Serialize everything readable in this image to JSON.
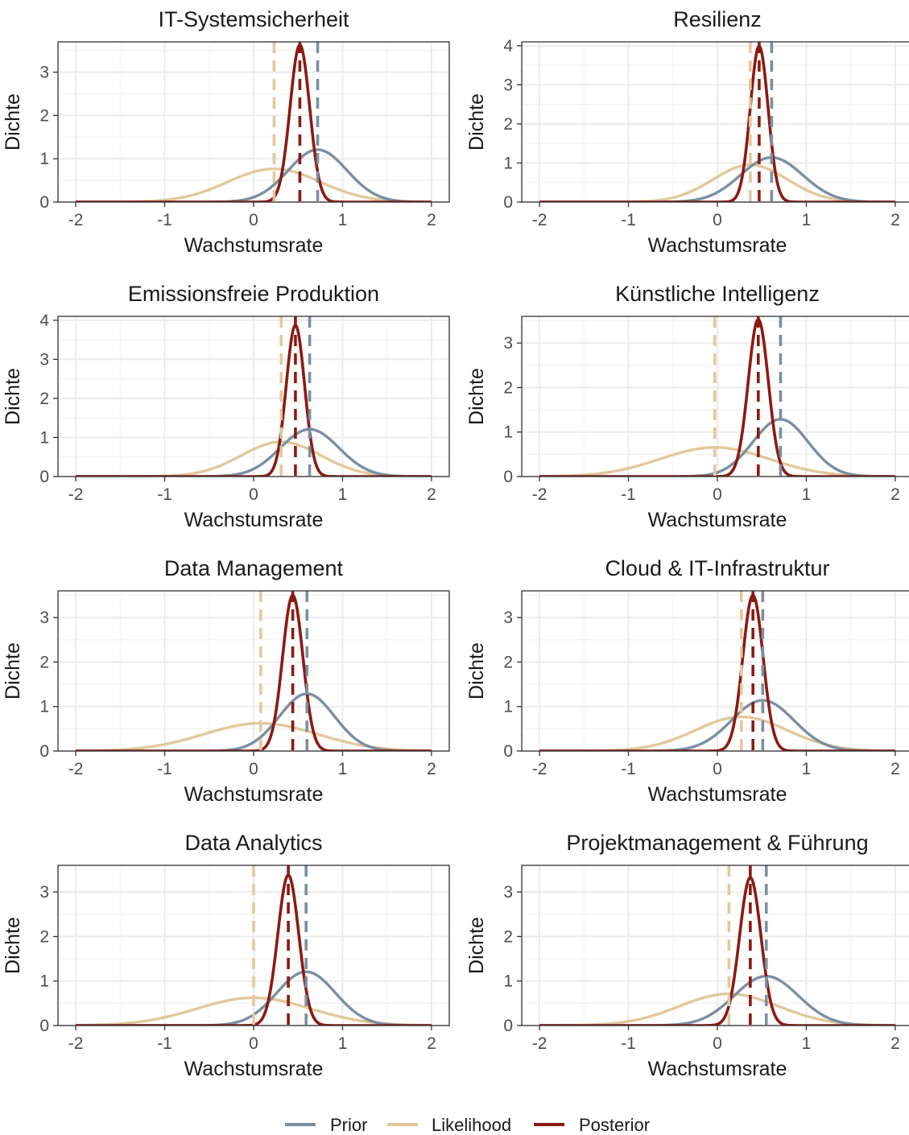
{
  "chart_data": {
    "type": "line",
    "layout": "4x2 facet grid",
    "legend": {
      "position": "bottom",
      "items": [
        {
          "name": "Prior",
          "color": "#7a8fa3"
        },
        {
          "name": "Likelihood",
          "color": "#e2c89b"
        },
        {
          "name": "Posterior",
          "color": "#8b1a12"
        }
      ]
    },
    "colors": {
      "prior": "#7a8fa3",
      "likelihood": "#e2c89b",
      "posterior": "#8b1a12",
      "grid": "#ebebeb",
      "panel_border": "#333333"
    },
    "grid": true,
    "xlabel": "Wachstumsrate",
    "ylabel": "Dichte",
    "xlim": [
      -2,
      2
    ],
    "xticks": [
      -2,
      -1,
      0,
      1,
      2
    ],
    "line_style": "normal density curves with dashed vertical lines at each curve's mean",
    "panels": [
      {
        "title": "IT-Systemsicherheit",
        "ylim": [
          0,
          3.7
        ],
        "yticks": [
          0,
          1,
          2,
          3
        ],
        "prior": {
          "mean": 0.72,
          "sd": 0.33
        },
        "likelihood": {
          "mean": 0.23,
          "sd": 0.52
        },
        "posterior": {
          "mean": 0.52,
          "sd": 0.11
        }
      },
      {
        "title": "Resilienz",
        "ylim": [
          0,
          4.1
        ],
        "yticks": [
          0,
          1,
          2,
          3,
          4
        ],
        "prior": {
          "mean": 0.61,
          "sd": 0.35
        },
        "likelihood": {
          "mean": 0.37,
          "sd": 0.42
        },
        "posterior": {
          "mean": 0.47,
          "sd": 0.1
        }
      },
      {
        "title": "Emissionsfreie Produktion",
        "ylim": [
          0,
          4.1
        ],
        "yticks": [
          0,
          1,
          2,
          3,
          4
        ],
        "prior": {
          "mean": 0.63,
          "sd": 0.33
        },
        "likelihood": {
          "mean": 0.31,
          "sd": 0.45
        },
        "posterior": {
          "mean": 0.47,
          "sd": 0.103
        }
      },
      {
        "title": "Künstliche Intelligenz",
        "ylim": [
          0,
          3.6
        ],
        "yticks": [
          0,
          1,
          2,
          3
        ],
        "prior": {
          "mean": 0.71,
          "sd": 0.31
        },
        "likelihood": {
          "mean": -0.03,
          "sd": 0.61
        },
        "posterior": {
          "mean": 0.46,
          "sd": 0.113
        }
      },
      {
        "title": "Data Management",
        "ylim": [
          0,
          3.6
        ],
        "yticks": [
          0,
          1,
          2,
          3
        ],
        "prior": {
          "mean": 0.6,
          "sd": 0.31
        },
        "likelihood": {
          "mean": 0.08,
          "sd": 0.64
        },
        "posterior": {
          "mean": 0.44,
          "sd": 0.114
        }
      },
      {
        "title": "Cloud & IT-Infrastruktur",
        "ylim": [
          0,
          3.6
        ],
        "yticks": [
          0,
          1,
          2,
          3
        ],
        "prior": {
          "mean": 0.51,
          "sd": 0.35
        },
        "likelihood": {
          "mean": 0.27,
          "sd": 0.52
        },
        "posterior": {
          "mean": 0.4,
          "sd": 0.114
        }
      },
      {
        "title": "Data Analytics",
        "ylim": [
          0,
          3.6
        ],
        "yticks": [
          0,
          1,
          2,
          3
        ],
        "prior": {
          "mean": 0.59,
          "sd": 0.33
        },
        "likelihood": {
          "mean": 0.0,
          "sd": 0.64
        },
        "posterior": {
          "mean": 0.39,
          "sd": 0.118
        }
      },
      {
        "title": "Projektmanagement & Führung",
        "ylim": [
          0,
          3.6
        ],
        "yticks": [
          0,
          1,
          2,
          3
        ],
        "prior": {
          "mean": 0.55,
          "sd": 0.36
        },
        "likelihood": {
          "mean": 0.13,
          "sd": 0.56
        },
        "posterior": {
          "mean": 0.37,
          "sd": 0.12
        }
      }
    ]
  }
}
